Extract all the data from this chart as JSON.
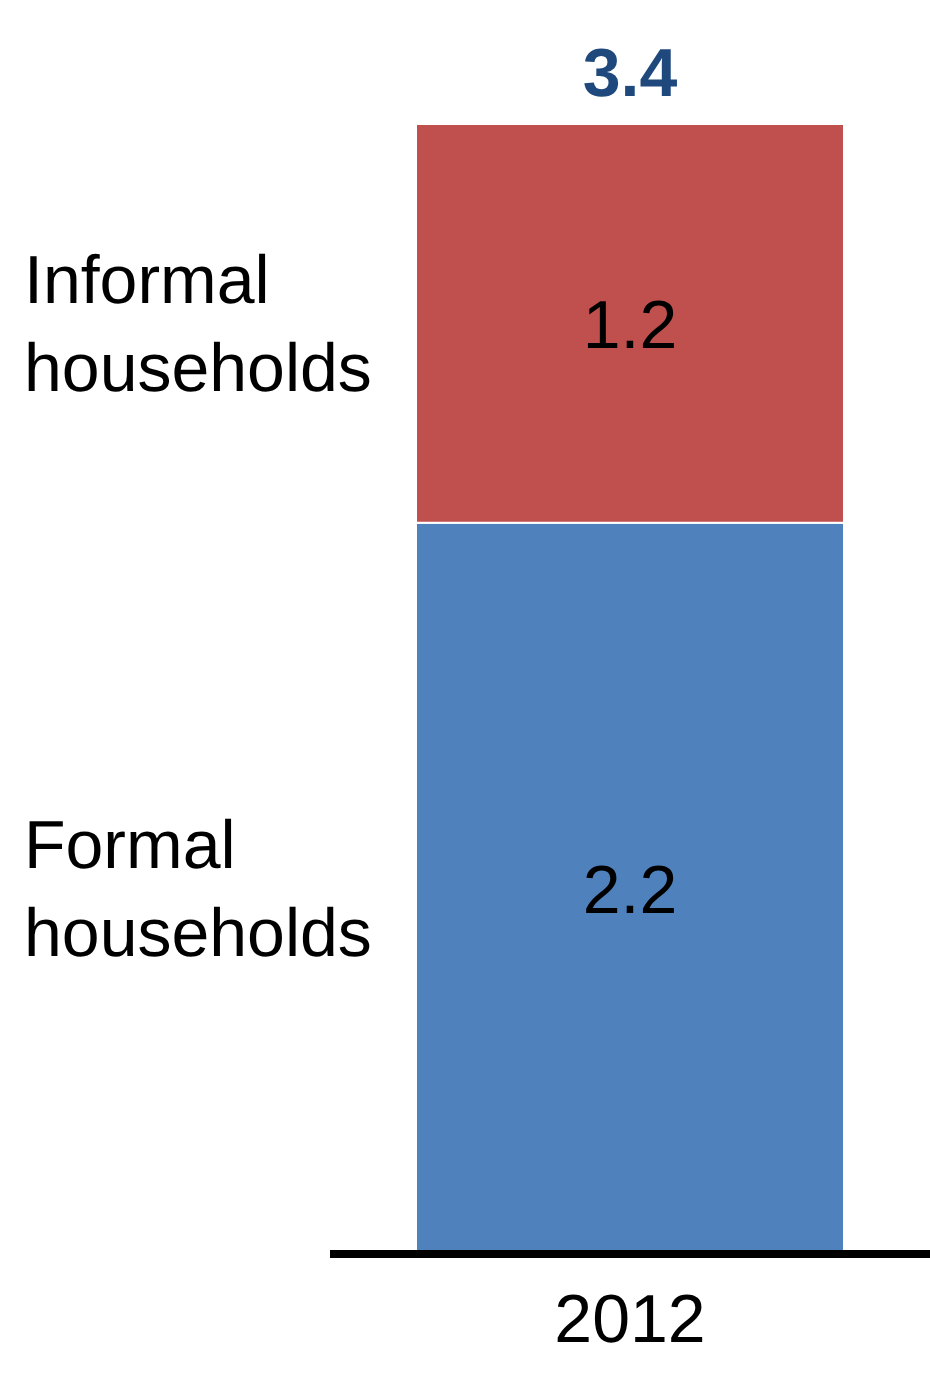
{
  "chart_data": {
    "type": "bar",
    "stacked": true,
    "categories": [
      "2012"
    ],
    "series": [
      {
        "name": "Formal households",
        "color": "#4f81bd",
        "values": [
          2.2
        ]
      },
      {
        "name": "Informal households",
        "color": "#c0504d",
        "values": [
          1.2
        ]
      }
    ],
    "data_labels": true,
    "totals": [
      "3.4"
    ]
  }
}
